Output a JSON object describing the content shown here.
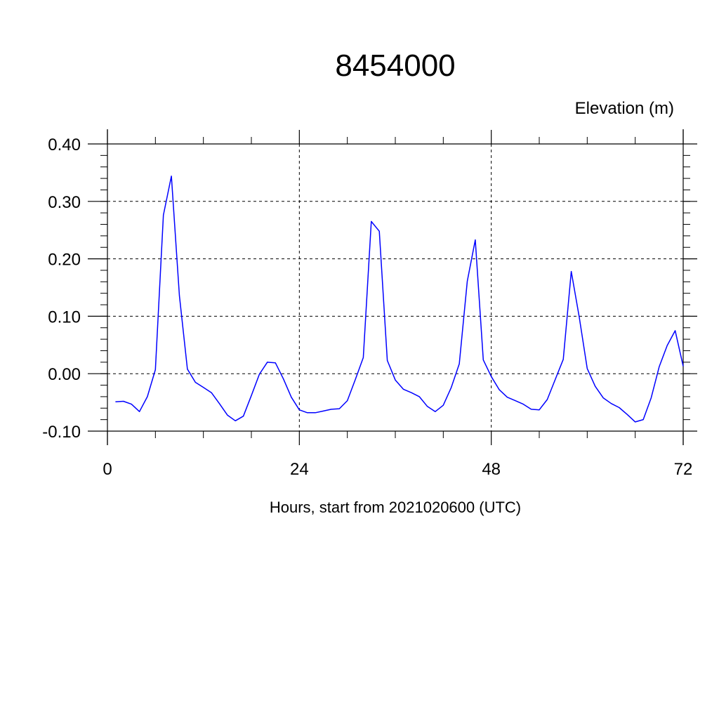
{
  "chart_data": {
    "type": "line",
    "title": "8454000",
    "ylabel": "Elevation (m)",
    "xlabel": "Hours, start from 2021020600 (UTC)",
    "xlim": [
      0,
      72
    ],
    "ylim": [
      -0.1,
      0.4
    ],
    "x_ticks": [
      0,
      24,
      48,
      72
    ],
    "x_tick_labels": [
      "0",
      "24",
      "48",
      "72"
    ],
    "y_ticks": [
      -0.1,
      0,
      0.1,
      0.2,
      0.3,
      0.4
    ],
    "y_tick_labels": [
      "-0.10",
      "0.00",
      "0.10",
      "0.20",
      "0.30",
      "0.40"
    ],
    "grid": true,
    "series": [
      {
        "color": "#0000ff",
        "x": [
          1,
          2,
          3,
          4,
          5,
          6,
          7,
          8,
          9,
          10,
          11,
          12,
          13,
          14,
          15,
          16,
          17,
          18,
          19,
          20,
          21,
          22,
          23,
          24,
          25,
          26,
          27,
          28,
          29,
          30,
          31,
          32,
          33,
          34,
          35,
          36,
          37,
          38,
          39,
          40,
          41,
          42,
          43,
          44,
          45,
          46,
          47,
          48,
          49,
          50,
          51,
          52,
          53,
          54,
          55,
          56,
          57,
          58,
          59,
          60,
          61,
          62,
          63,
          64,
          65,
          66,
          67,
          68,
          69,
          70,
          71,
          72
        ],
        "y": [
          -0.049,
          -0.048,
          -0.053,
          -0.066,
          -0.04,
          0.007,
          0.276,
          0.344,
          0.136,
          0.008,
          -0.015,
          -0.024,
          -0.033,
          -0.052,
          -0.072,
          -0.082,
          -0.074,
          -0.038,
          -0.001,
          0.02,
          0.019,
          -0.009,
          -0.041,
          -0.063,
          -0.068,
          -0.068,
          -0.065,
          -0.062,
          -0.061,
          -0.047,
          -0.01,
          0.028,
          0.265,
          0.248,
          0.023,
          -0.011,
          -0.027,
          -0.033,
          -0.04,
          -0.057,
          -0.066,
          -0.055,
          -0.024,
          0.017,
          0.161,
          0.233,
          0.024,
          -0.005,
          -0.028,
          -0.041,
          -0.047,
          -0.053,
          -0.062,
          -0.063,
          -0.045,
          -0.01,
          0.025,
          0.178,
          0.099,
          0.009,
          -0.022,
          -0.042,
          -0.052,
          -0.059,
          -0.071,
          -0.084,
          -0.08,
          -0.042,
          0.012,
          0.049,
          0.075,
          0.013
        ]
      }
    ]
  }
}
